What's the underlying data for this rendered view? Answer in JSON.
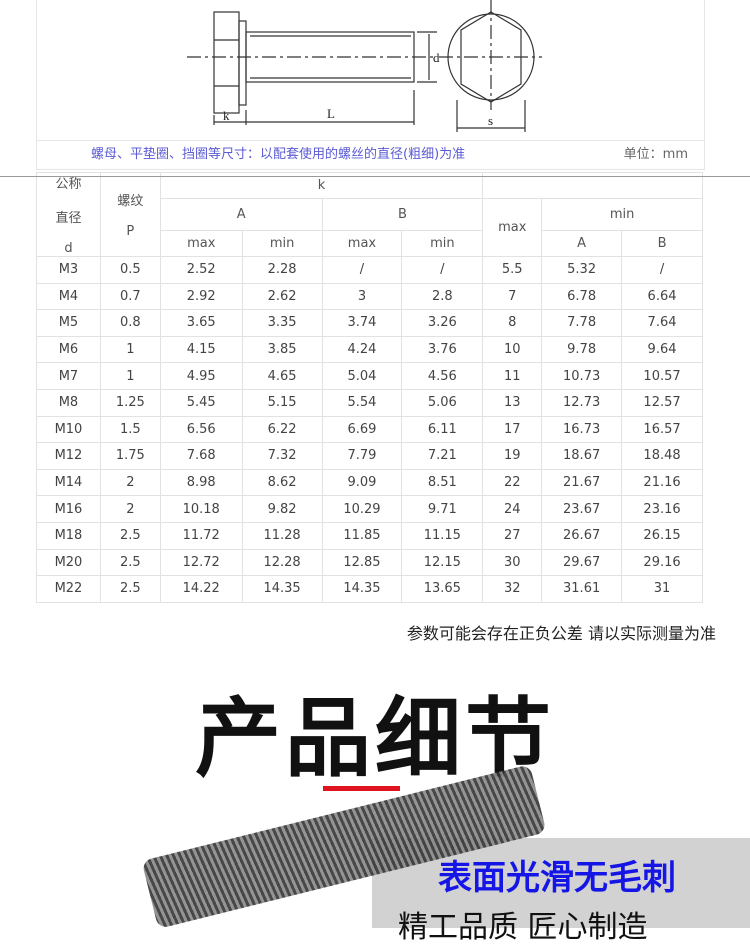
{
  "drawing": {
    "labels": {
      "k": "k",
      "L": "L",
      "d": "d",
      "s": "s"
    }
  },
  "note": {
    "text": "螺母、平垫圈、挡圈等尺寸：以配套使用的螺丝的直径(粗细)为准",
    "unit": "单位：mm"
  },
  "table": {
    "h_d": [
      "公称",
      "直径",
      "d"
    ],
    "h_p": [
      "螺纹",
      "P"
    ],
    "h_k": "k",
    "h_A": "A",
    "h_B": "B",
    "h_max": "max",
    "h_min": "min",
    "sub": [
      "max",
      "min",
      "max",
      "min",
      "A",
      "B"
    ],
    "rows": [
      [
        "M3",
        "0.5",
        "2.52",
        "2.28",
        "/",
        "/",
        "5.5",
        "5.32",
        "/"
      ],
      [
        "M4",
        "0.7",
        "2.92",
        "2.62",
        "3",
        "2.8",
        "7",
        "6.78",
        "6.64"
      ],
      [
        "M5",
        "0.8",
        "3.65",
        "3.35",
        "3.74",
        "3.26",
        "8",
        "7.78",
        "7.64"
      ],
      [
        "M6",
        "1",
        "4.15",
        "3.85",
        "4.24",
        "3.76",
        "10",
        "9.78",
        "9.64"
      ],
      [
        "M7",
        "1",
        "4.95",
        "4.65",
        "5.04",
        "4.56",
        "11",
        "10.73",
        "10.57"
      ],
      [
        "M8",
        "1.25",
        "5.45",
        "5.15",
        "5.54",
        "5.06",
        "13",
        "12.73",
        "12.57"
      ],
      [
        "M10",
        "1.5",
        "6.56",
        "6.22",
        "6.69",
        "6.11",
        "17",
        "16.73",
        "16.57"
      ],
      [
        "M12",
        "1.75",
        "7.68",
        "7.32",
        "7.79",
        "7.21",
        "19",
        "18.67",
        "18.48"
      ],
      [
        "M14",
        "2",
        "8.98",
        "8.62",
        "9.09",
        "8.51",
        "22",
        "21.67",
        "21.16"
      ],
      [
        "M16",
        "2",
        "10.18",
        "9.82",
        "10.29",
        "9.71",
        "24",
        "23.67",
        "23.16"
      ],
      [
        "M18",
        "2.5",
        "11.72",
        "11.28",
        "11.85",
        "11.15",
        "27",
        "26.67",
        "26.15"
      ],
      [
        "M20",
        "2.5",
        "12.72",
        "12.28",
        "12.85",
        "12.15",
        "30",
        "29.67",
        "29.16"
      ],
      [
        "M22",
        "2.5",
        "14.22",
        "14.35",
        "14.35",
        "13.65",
        "32",
        "31.61",
        "31"
      ]
    ]
  },
  "hint": "参数可能会存在正负公差 请以实际测量为准",
  "section_title": "产品细节",
  "banner": {
    "line1": "表面光滑无毛刺",
    "line2": "精工品质 匠心制造"
  },
  "colors": {
    "accent_red": "#e0141e",
    "banner_blue": "#1515e6"
  }
}
